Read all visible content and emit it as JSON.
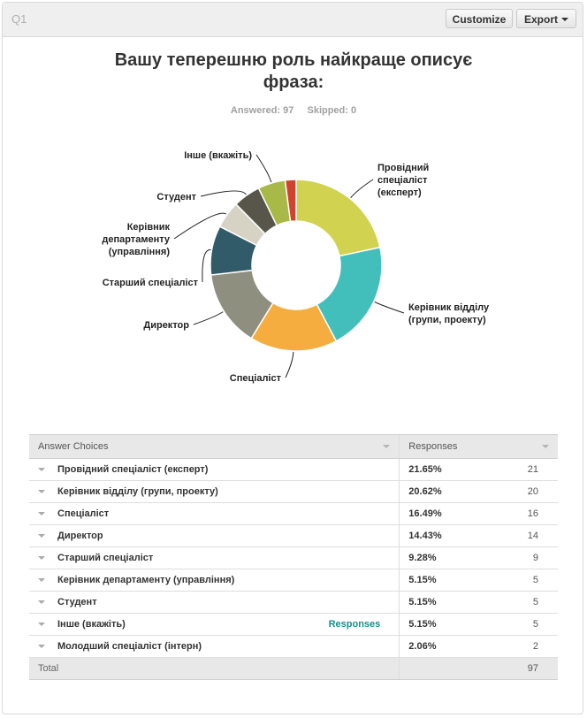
{
  "header": {
    "question_number": "Q1",
    "customize_label": "Customize",
    "export_label": "Export"
  },
  "question": {
    "title_line1": "Вашу теперешню роль найкраще описує",
    "title_line2": "фраза:",
    "answered": "Answered: 97",
    "skipped": "Skipped: 0"
  },
  "table": {
    "col_choices": "Answer Choices",
    "col_responses": "Responses",
    "responses_link": "Responses",
    "rows": [
      {
        "choice": "Провідний спеціаліст (експерт)",
        "percent": "21.65%",
        "count": "21"
      },
      {
        "choice": "Керівник відділу (групи, проекту)",
        "percent": "20.62%",
        "count": "20"
      },
      {
        "choice": "Спеціаліст",
        "percent": "16.49%",
        "count": "16"
      },
      {
        "choice": "Директор",
        "percent": "14.43%",
        "count": "14"
      },
      {
        "choice": "Старший спеціаліст",
        "percent": "9.28%",
        "count": "9"
      },
      {
        "choice": "Керівник департаменту (управління)",
        "percent": "5.15%",
        "count": "5"
      },
      {
        "choice": "Студент",
        "percent": "5.15%",
        "count": "5"
      },
      {
        "choice": "Інше (вкажіть)",
        "percent": "5.15%",
        "count": "5"
      },
      {
        "choice": "Молодший спеціаліст (інтерн)",
        "percent": "2.06%",
        "count": "2"
      }
    ],
    "total_label": "Total",
    "total_value": "97"
  },
  "chart_data": {
    "type": "pie",
    "donut": true,
    "title": "Вашу теперешню роль найкраще описує фраза:",
    "slices": [
      {
        "label": "Провідний спеціаліст (експерт)",
        "value": 21,
        "percent": 21.65,
        "color": "#d1d24f"
      },
      {
        "label": "Керівник відділу (групи, проекту)",
        "value": 20,
        "percent": 20.62,
        "color": "#43bfbb"
      },
      {
        "label": "Спеціаліст",
        "value": 16,
        "percent": 16.49,
        "color": "#f4ad3e"
      },
      {
        "label": "Директор",
        "value": 14,
        "percent": 14.43,
        "color": "#8e8f7e"
      },
      {
        "label": "Старший спеціаліст",
        "value": 9,
        "percent": 9.28,
        "color": "#325b6a"
      },
      {
        "label": "Керівник департаменту (управління)",
        "value": 5,
        "percent": 5.15,
        "color": "#d6d3c5"
      },
      {
        "label": "Студент",
        "value": 5,
        "percent": 5.15,
        "color": "#58564a"
      },
      {
        "label": "Інше (вкажіть)",
        "value": 5,
        "percent": 5.15,
        "color": "#a8b948"
      },
      {
        "label": "Молодший спеціаліст (інтерн)",
        "value": 2,
        "percent": 2.06,
        "color": "#d1432f"
      }
    ],
    "chart_labels": [
      [
        "Провідний",
        "спеціаліст",
        "(експерт)"
      ],
      [
        "Керівник відділу",
        "(групи, проекту)"
      ],
      [
        "Спеціаліст"
      ],
      [
        "Директор"
      ],
      [
        "Старший спеціаліст"
      ],
      [
        "Керівник",
        "департаменту",
        "(управління)"
      ],
      [
        "Студент"
      ],
      [
        "Інше (вкажіть)"
      ],
      []
    ]
  }
}
